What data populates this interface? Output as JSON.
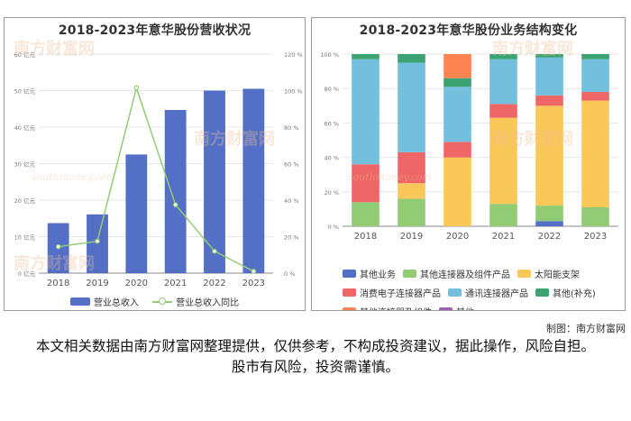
{
  "left_chart": {
    "title": "2018-2023年意华股份营收状况",
    "legend": {
      "bar_label": "营业总收入",
      "line_label": "营业总收入同比"
    }
  },
  "right_chart": {
    "title": "2018-2023年意华股份业务结构变化"
  },
  "watermark": {
    "text": "南方财富网",
    "sub": "southmoney.com"
  },
  "credit": "制图：南方财富网",
  "disclaimer": "本文相关数据由南方财富网整理提供，仅供参考，不构成投资建议，据此操作，风险自担。股市有风险，投资需谨慎。",
  "colors": {
    "revenue_bar": "#5470c6",
    "yoy_line": "#91cc75",
    "other_business": "#5470c6",
    "other_connectors_products": "#91cc75",
    "solar_bracket": "#fac858",
    "consumer_connectors": "#ee6666",
    "telecom_connectors": "#73c0de",
    "other_supplement": "#3ba272",
    "other_connectors_components": "#fc8452",
    "other": "#9a60b4"
  },
  "chart_data": [
    {
      "type": "bar",
      "title": "2018-2023年意华股份营收状况",
      "categories": [
        "2018",
        "2019",
        "2020",
        "2021",
        "2022",
        "2023"
      ],
      "y_axis_left": {
        "ticks": [
          "0 亿元",
          "10 亿元",
          "20 亿元",
          "30 亿元",
          "40 亿元",
          "50 亿元",
          "60 亿元"
        ],
        "ylim": [
          0,
          60
        ]
      },
      "y_axis_right": {
        "ticks": [
          "0 %",
          "20 %",
          "40 %",
          "60 %",
          "80 %",
          "100 %",
          "120 %"
        ],
        "ylim": [
          0,
          120
        ]
      },
      "series": [
        {
          "name": "营业总收入",
          "type": "bar",
          "axis": "left",
          "values": [
            13.7,
            16.1,
            32.5,
            44.7,
            50.0,
            50.5
          ]
        },
        {
          "name": "营业总收入同比",
          "type": "line",
          "axis": "right",
          "values": [
            14.5,
            17.5,
            101.5,
            37.5,
            12.0,
            1.0
          ]
        }
      ]
    },
    {
      "type": "bar",
      "stacked": true,
      "percent": true,
      "title": "2018-2023年意华股份业务结构变化",
      "categories": [
        "2018",
        "2019",
        "2020",
        "2021",
        "2022",
        "2023"
      ],
      "y_axis": {
        "ticks": [
          "0 %",
          "20 %",
          "40 %",
          "60 %",
          "80 %",
          "100 %"
        ],
        "ylim": [
          0,
          100
        ]
      },
      "series": [
        {
          "name": "其他业务",
          "values": [
            0,
            0,
            0,
            0,
            3,
            0
          ]
        },
        {
          "name": "其他连接器及组件产品",
          "values": [
            14,
            16,
            0,
            13,
            9,
            11
          ]
        },
        {
          "name": "太阳能支架",
          "values": [
            0,
            9,
            40,
            50,
            58,
            62
          ]
        },
        {
          "name": "消费电子连接器产品",
          "values": [
            22,
            18,
            9,
            8,
            6,
            5
          ]
        },
        {
          "name": "通讯连接器产品",
          "values": [
            61,
            52,
            32,
            26,
            22,
            19
          ]
        },
        {
          "name": "其他(补充)",
          "values": [
            3,
            5,
            5,
            3,
            2,
            3
          ]
        },
        {
          "name": "其他连接器及组件",
          "values": [
            0,
            0,
            14,
            0,
            0,
            0
          ]
        },
        {
          "name": "其他",
          "values": [
            0,
            0,
            0,
            0,
            0,
            0
          ]
        }
      ]
    }
  ]
}
